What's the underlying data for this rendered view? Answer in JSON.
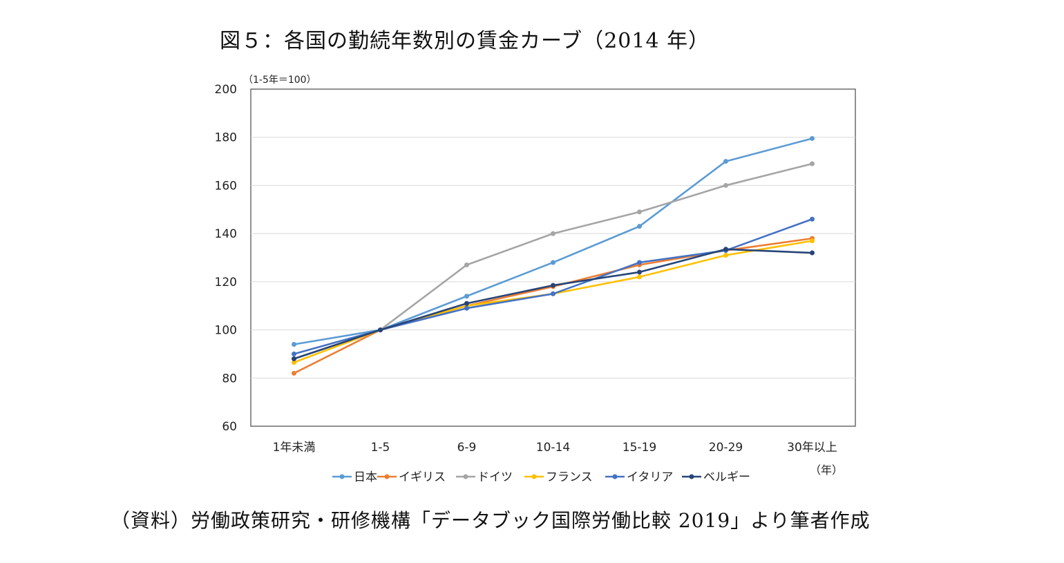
{
  "title": "図５：各国の勤続年数別の賃金カーブ（2014 年）",
  "source_note": "（資料）労働政策研究・研修機構「データブック国際労働比較 2019」より筆者作成",
  "chart_data": {
    "type": "line",
    "unit_label": "（1-5年＝100）",
    "x_unit_label": "（年）",
    "categories": [
      "1年未満",
      "1-5",
      "6-9",
      "10-14",
      "15-19",
      "20-29",
      "30年以上"
    ],
    "ylim": [
      60,
      200
    ],
    "yticks": [
      60,
      80,
      100,
      120,
      140,
      160,
      180,
      200
    ],
    "grid": true,
    "legend_position": "bottom",
    "series": [
      {
        "name": "日本",
        "color": "#5b9bd5",
        "values": [
          94,
          100,
          114,
          128,
          143,
          170,
          179.5
        ]
      },
      {
        "name": "イギリス",
        "color": "#ed7d31",
        "values": [
          82,
          100,
          110,
          118,
          127,
          133,
          138
        ]
      },
      {
        "name": "ドイツ",
        "color": "#a5a5a5",
        "values": [
          88,
          100,
          127,
          140,
          149,
          160,
          169
        ]
      },
      {
        "name": "フランス",
        "color": "#ffc000",
        "values": [
          86.5,
          100,
          110,
          115,
          122,
          131,
          137
        ]
      },
      {
        "name": "イタリア",
        "color": "#4472c4",
        "values": [
          90,
          100,
          109,
          115,
          128,
          133,
          146
        ]
      },
      {
        "name": "ベルギー",
        "color": "#264478",
        "values": [
          88,
          100,
          111,
          118.5,
          124,
          133.5,
          132
        ]
      }
    ]
  }
}
